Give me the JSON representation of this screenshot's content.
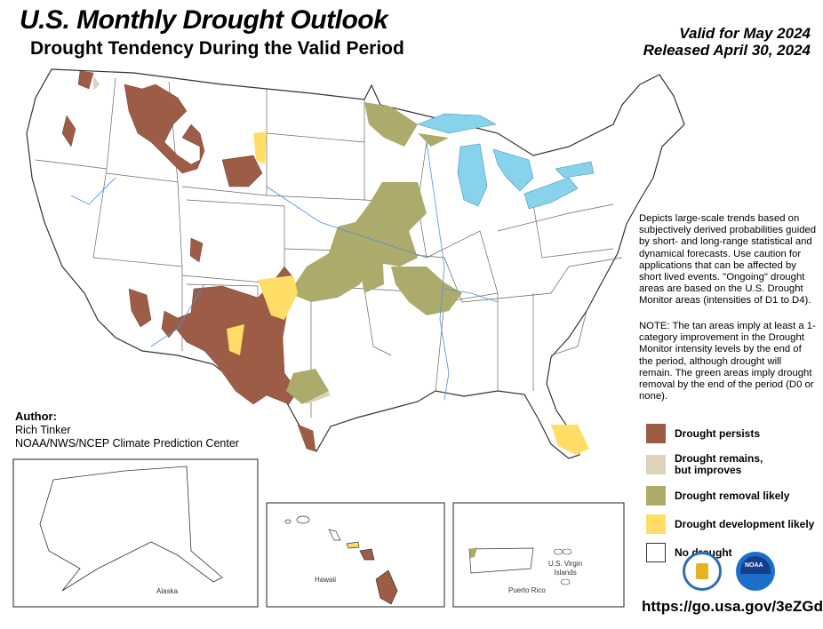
{
  "header": {
    "title": "U.S. Monthly Drought Outlook",
    "subtitle": "Drought Tendency During the Valid Period",
    "valid": "Valid for May 2024",
    "released": "Released April 30, 2024"
  },
  "description": "Depicts large-scale trends based on subjectively derived probabilities guided by short- and long-range statistical and dynamical forecasts. Use caution for applications that can be affected by short lived events. \"Ongoing\" drought areas are based on the U.S. Drought Monitor areas (intensities of D1 to D4).",
  "note": "NOTE: The tan areas imply at least a 1-category improvement in the Drought Monitor intensity levels by the end of the period, although drought will remain. The green areas imply drought removal by the end of the period (D0 or none).",
  "legend": [
    {
      "label": "Drought persists",
      "color": "#9c5c45"
    },
    {
      "label": "Drought remains,",
      "label2": "but improves",
      "color": "#ddd2bb"
    },
    {
      "label": "Drought removal likely",
      "color": "#adab6b"
    },
    {
      "label": "Drought development likely",
      "color": "#ffdd66"
    },
    {
      "label": "No drought",
      "color": "#ffffff"
    }
  ],
  "author": {
    "heading": "Author:",
    "name": "Rich Tinker",
    "org": "NOAA/NWS/NCEP Climate Prediction Center"
  },
  "insets": {
    "alaska": "Alaska",
    "hawaii": "Hawaii",
    "puerto_rico": "Puerto Rico",
    "virgin_islands_1": "U.S. Virgin",
    "virgin_islands_2": "Islands"
  },
  "logos": {
    "commerce": "Department of Commerce seal",
    "noaa": "NOAA"
  },
  "url": "https://go.usa.gov/3eZGd",
  "colors": {
    "water": "#88d3ec",
    "river": "#4a90e2",
    "border": "#555555"
  }
}
